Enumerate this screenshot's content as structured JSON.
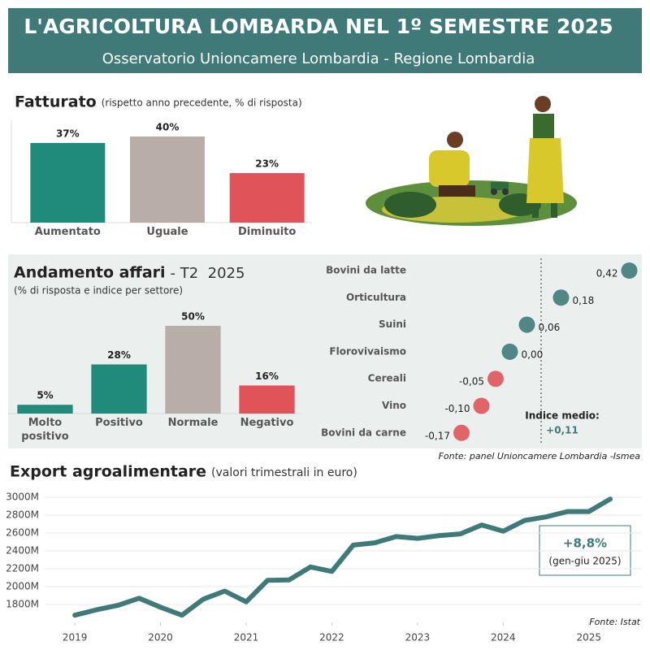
{
  "header": {
    "title": "L'AGRICOLTURA LOMBARDA NEL 1º SEMESTRE 2025",
    "subtitle": "Osservatorio Unioncamere Lombardia - Regione Lombardia"
  },
  "chart_data": [
    {
      "type": "bar",
      "title": "Fatturato",
      "subtitle": "(rispetto anno precedente, % di risposta)",
      "categories": [
        "Aumentato",
        "Uguale",
        "Diminuito"
      ],
      "values": [
        37,
        40,
        23
      ],
      "value_labels": [
        "37%",
        "40%",
        "23%"
      ],
      "colors": [
        "#218b7b",
        "#b8ada7",
        "#e05459"
      ],
      "ylim": [
        0,
        40
      ]
    },
    {
      "type": "bar",
      "title": "Andamento affari",
      "title_period": "- T2  2025",
      "subtitle": "(% di risposta e indice per settore)",
      "categories": [
        "Molto positivo",
        "Positivo",
        "Normale",
        "Negativo"
      ],
      "values": [
        5,
        28,
        50,
        16
      ],
      "value_labels": [
        "5%",
        "28%",
        "50%",
        "16%"
      ],
      "colors": [
        "#218b7b",
        "#218b7b",
        "#b8ada7",
        "#e05459"
      ],
      "ylim": [
        0,
        50
      ]
    },
    {
      "type": "dot",
      "categories": [
        "Bovini da latte",
        "Orticultura",
        "Suini",
        "Florovivaismo",
        "Cereali",
        "Vino",
        "Bovini da carne"
      ],
      "values": [
        0.42,
        0.18,
        0.06,
        0.0,
        -0.05,
        -0.1,
        -0.17
      ],
      "value_labels": [
        "0,42",
        "0,18",
        "0,06",
        "0,00",
        "-0,05",
        "-0,10",
        "-0,17"
      ],
      "colors": [
        "#3f7a78",
        "#3f7a78",
        "#3f7a78",
        "#3f7a78",
        "#e05459",
        "#e05459",
        "#e05459"
      ],
      "xlim": [
        -0.25,
        0.47
      ],
      "mean": 0.11,
      "mean_title": "Indice medio:",
      "mean_label": "+0,11",
      "source": "Fonte: panel Unioncamere Lombardia -Ismea"
    },
    {
      "type": "line",
      "title": "Export agroalimentare",
      "subtitle": "(valori trimestrali in euro)",
      "color": "#3f7a78",
      "x": [
        2019,
        2019.25,
        2019.5,
        2019.75,
        2020,
        2020.25,
        2020.5,
        2020.75,
        2021,
        2021.25,
        2021.5,
        2021.75,
        2022,
        2022.25,
        2022.5,
        2022.75,
        2023,
        2023.25,
        2023.5,
        2023.75,
        2024,
        2024.25,
        2024.5,
        2024.75,
        2025,
        2025.25
      ],
      "values": [
        1680,
        1740,
        1790,
        1870,
        1770,
        1680,
        1860,
        1950,
        1830,
        2070,
        2075,
        2220,
        2170,
        2465,
        2490,
        2560,
        2540,
        2570,
        2590,
        2690,
        2620,
        2740,
        2780,
        2840,
        2840,
        2980
      ],
      "xlim": [
        2018.8,
        2025.6
      ],
      "xticks": [
        2019,
        2020,
        2021,
        2022,
        2023,
        2024,
        2025
      ],
      "ylim": [
        1600,
        3100
      ],
      "yticks": [
        {
          "value": 1800,
          "label": "1800M"
        },
        {
          "value": 2000,
          "label": "2000M"
        },
        {
          "value": 2200,
          "label": "2200M"
        },
        {
          "value": 2400,
          "label": "2400M"
        },
        {
          "value": 2600,
          "label": "2600M"
        },
        {
          "value": 2800,
          "label": "2800M"
        },
        {
          "value": 3000,
          "label": "3000M"
        }
      ],
      "grid": true,
      "annotation": {
        "value": "+8,8%",
        "note": "(gen-giu 2025)"
      },
      "source": "Fonte: Istat"
    }
  ]
}
